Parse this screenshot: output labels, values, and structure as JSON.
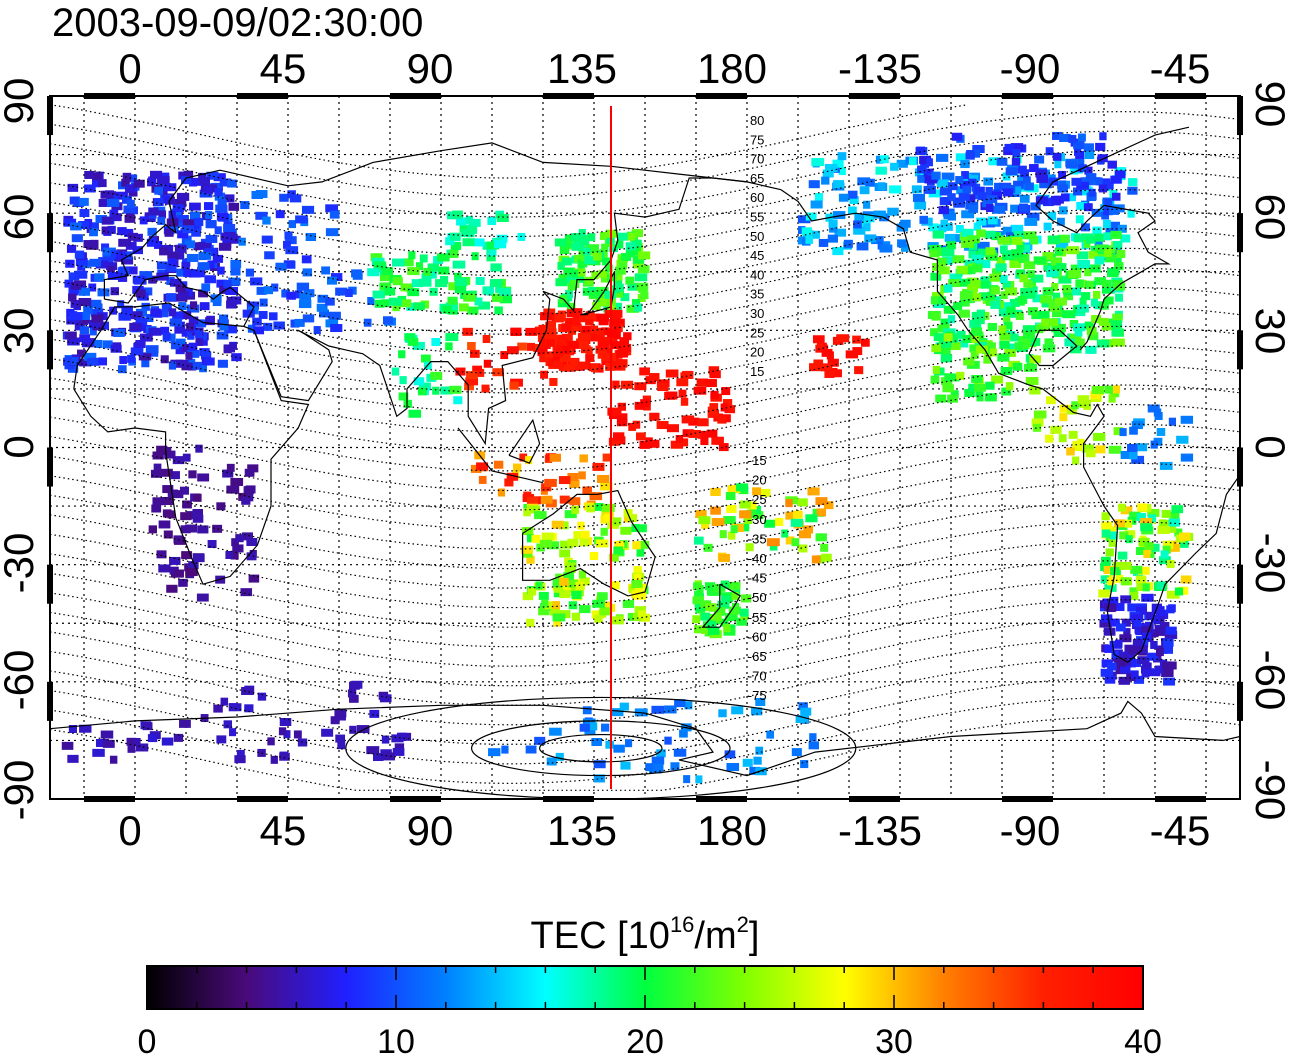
{
  "header": {
    "timestamp": "2003-09-09/02:30:00"
  },
  "map": {
    "lon_ticks_top": [
      "0",
      "45",
      "90",
      "135",
      "180",
      "-135",
      "-90",
      "-45"
    ],
    "lon_ticks_bottom": [
      "0",
      "45",
      "90",
      "135",
      "180",
      "-135",
      "-90",
      "-45"
    ],
    "lat_ticks_left": [
      "90",
      "60",
      "30",
      "0",
      "-30",
      "-60",
      "-90"
    ],
    "lat_ticks_right": [
      "90",
      "60",
      "30",
      "0",
      "-30",
      "-60",
      "-90"
    ],
    "lon_range": [
      -25,
      325
    ],
    "lat_range": [
      -90,
      90
    ],
    "grid_spacing_deg": 15,
    "meridian_line": {
      "lon": 140,
      "color": "#ff0000"
    },
    "maglat_labels_north": [
      "80",
      "75",
      "70",
      "65",
      "60",
      "55",
      "50",
      "45",
      "40",
      "35",
      "30",
      "25",
      "20",
      "15"
    ],
    "maglat_labels_south": [
      "-15",
      "-20",
      "-25",
      "-30",
      "-35",
      "-40",
      "-45",
      "-50",
      "-55",
      "-60",
      "-65",
      "-70",
      "-75"
    ]
  },
  "colorbar": {
    "title_main": "TEC  [10",
    "title_exp1": "16",
    "title_mid": "/m",
    "title_exp2": "2",
    "title_end": "]",
    "tick_labels": [
      "0",
      "10",
      "20",
      "30",
      "40"
    ],
    "min": 0,
    "max": 40,
    "colors": [
      "#000000",
      "#4a0a7a",
      "#2020ff",
      "#0080ff",
      "#00ffff",
      "#00ff40",
      "#80ff00",
      "#ffff00",
      "#ff8000",
      "#ff2000",
      "#ff0000"
    ]
  },
  "tec_regions": [
    {
      "lon": [
        -20,
        30
      ],
      "lat": [
        20,
        70
      ],
      "tec": [
        5,
        11
      ],
      "n": 420
    },
    {
      "lon": [
        30,
        60
      ],
      "lat": [
        30,
        65
      ],
      "tec": [
        8,
        12
      ],
      "n": 60
    },
    {
      "lon": [
        45,
        75
      ],
      "lat": [
        30,
        45
      ],
      "tec": [
        9,
        12
      ],
      "n": 15
    },
    {
      "lon": [
        70,
        110
      ],
      "lat": [
        35,
        50
      ],
      "tec": [
        17,
        23
      ],
      "n": 80
    },
    {
      "lon": [
        90,
        115
      ],
      "lat": [
        50,
        60
      ],
      "tec": [
        16,
        20
      ],
      "n": 25
    },
    {
      "lon": [
        75,
        95
      ],
      "lat": [
        8,
        30
      ],
      "tec": [
        16,
        22
      ],
      "n": 25
    },
    {
      "lon": [
        95,
        125
      ],
      "lat": [
        15,
        30
      ],
      "tec": [
        34,
        40
      ],
      "n": 30
    },
    {
      "lon": [
        125,
        150
      ],
      "lat": [
        35,
        55
      ],
      "tec": [
        18,
        24
      ],
      "n": 120
    },
    {
      "lon": [
        120,
        145
      ],
      "lat": [
        20,
        35
      ],
      "tec": [
        36,
        40
      ],
      "n": 120
    },
    {
      "lon": [
        140,
        175
      ],
      "lat": [
        0,
        20
      ],
      "tec": [
        37,
        40
      ],
      "n": 70
    },
    {
      "lon": [
        200,
        215
      ],
      "lat": [
        18,
        28
      ],
      "tec": [
        37,
        40
      ],
      "n": 20
    },
    {
      "lon": [
        100,
        140
      ],
      "lat": [
        -15,
        -2
      ],
      "tec": [
        28,
        38
      ],
      "n": 40
    },
    {
      "lon": [
        115,
        150
      ],
      "lat": [
        -45,
        -15
      ],
      "tec": [
        20,
        30
      ],
      "n": 130
    },
    {
      "lon": [
        165,
        180
      ],
      "lat": [
        -48,
        -35
      ],
      "tec": [
        19,
        24
      ],
      "n": 55
    },
    {
      "lon": [
        165,
        205
      ],
      "lat": [
        -30,
        -10
      ],
      "tec": [
        18,
        32
      ],
      "n": 60
    },
    {
      "lon": [
        195,
        295
      ],
      "lat": [
        50,
        75
      ],
      "tec": [
        10,
        17
      ],
      "n": 200
    },
    {
      "lon": [
        230,
        290
      ],
      "lat": [
        60,
        80
      ],
      "tec": [
        7,
        11
      ],
      "n": 120
    },
    {
      "lon": [
        235,
        290
      ],
      "lat": [
        25,
        55
      ],
      "tec": [
        17,
        24
      ],
      "n": 300
    },
    {
      "lon": [
        235,
        265
      ],
      "lat": [
        12,
        30
      ],
      "tec": [
        19,
        25
      ],
      "n": 60
    },
    {
      "lon": [
        265,
        290
      ],
      "lat": [
        -5,
        15
      ],
      "tec": [
        22,
        30
      ],
      "n": 35
    },
    {
      "lon": [
        290,
        310
      ],
      "lat": [
        -5,
        10
      ],
      "tec": [
        10,
        14
      ],
      "n": 20
    },
    {
      "lon": [
        285,
        310
      ],
      "lat": [
        -38,
        -15
      ],
      "tec": [
        17,
        30
      ],
      "n": 90
    },
    {
      "lon": [
        285,
        305
      ],
      "lat": [
        -60,
        -38
      ],
      "tec": [
        5,
        9
      ],
      "n": 110
    },
    {
      "lon": [
        5,
        35
      ],
      "lat": [
        -40,
        0
      ],
      "tec": [
        4,
        6
      ],
      "n": 80
    },
    {
      "lon": [
        20,
        80
      ],
      "lat": [
        -80,
        -60
      ],
      "tec": [
        5,
        7
      ],
      "n": 50
    },
    {
      "lon": [
        -20,
        20
      ],
      "lat": [
        -80,
        -70
      ],
      "tec": [
        5,
        7
      ],
      "n": 20
    },
    {
      "lon": [
        105,
        200
      ],
      "lat": [
        -85,
        -65
      ],
      "tec": [
        10,
        14
      ],
      "n": 60
    }
  ],
  "coast_polylines": [
    [
      [
        -18,
        15
      ],
      [
        -17,
        21
      ],
      [
        -10,
        30
      ],
      [
        -6,
        36
      ],
      [
        0,
        36
      ],
      [
        10,
        37
      ],
      [
        20,
        32
      ],
      [
        32,
        31
      ],
      [
        35,
        30
      ],
      [
        43,
        12
      ],
      [
        51,
        11
      ],
      [
        48,
        5
      ],
      [
        40,
        -3
      ],
      [
        40,
        -15
      ],
      [
        36,
        -25
      ],
      [
        28,
        -33
      ],
      [
        20,
        -35
      ],
      [
        17,
        -29
      ],
      [
        12,
        -18
      ],
      [
        9,
        -1
      ],
      [
        9,
        4
      ],
      [
        0,
        5
      ],
      [
        -8,
        4
      ],
      [
        -13,
        8
      ],
      [
        -18,
        15
      ]
    ],
    [
      [
        -9,
        38
      ],
      [
        -9,
        43
      ],
      [
        -2,
        44
      ],
      [
        -4,
        48
      ],
      [
        2,
        51
      ],
      [
        5,
        54
      ],
      [
        9,
        57
      ],
      [
        12,
        55
      ],
      [
        10,
        63
      ],
      [
        15,
        69
      ],
      [
        25,
        71
      ],
      [
        30,
        70
      ],
      [
        40,
        68
      ],
      [
        45,
        67
      ],
      [
        55,
        68
      ],
      [
        70,
        73
      ],
      [
        90,
        76
      ],
      [
        105,
        78
      ],
      [
        120,
        73
      ],
      [
        140,
        72
      ],
      [
        160,
        70
      ],
      [
        180,
        68
      ],
      [
        190,
        66
      ]
    ],
    [
      [
        32,
        31
      ],
      [
        35,
        36
      ],
      [
        28,
        41
      ],
      [
        26,
        40
      ],
      [
        23,
        38
      ],
      [
        20,
        40
      ],
      [
        15,
        41
      ],
      [
        12,
        44
      ],
      [
        9,
        44
      ],
      [
        3,
        43
      ],
      [
        -2,
        37
      ],
      [
        -9,
        38
      ]
    ],
    [
      [
        35,
        30
      ],
      [
        43,
        13
      ],
      [
        51,
        12
      ],
      [
        58,
        22
      ],
      [
        57,
        25
      ],
      [
        50,
        29
      ],
      [
        48,
        30
      ],
      [
        57,
        26
      ],
      [
        62,
        25
      ],
      [
        67,
        24
      ],
      [
        72,
        21
      ],
      [
        77,
        8
      ],
      [
        80,
        10
      ],
      [
        80,
        15
      ],
      [
        87,
        22
      ],
      [
        92,
        22
      ],
      [
        98,
        16
      ],
      [
        98,
        8
      ],
      [
        103,
        1
      ],
      [
        104,
        10
      ],
      [
        109,
        12
      ],
      [
        108,
        21
      ],
      [
        117,
        23
      ],
      [
        121,
        30
      ],
      [
        122,
        38
      ],
      [
        120,
        40
      ],
      [
        126,
        38
      ],
      [
        129,
        35
      ],
      [
        130,
        43
      ],
      [
        135,
        43
      ],
      [
        140,
        48
      ],
      [
        142,
        53
      ],
      [
        141,
        60
      ],
      [
        150,
        59
      ],
      [
        160,
        61
      ],
      [
        163,
        69
      ],
      [
        170,
        69
      ],
      [
        180,
        68
      ]
    ],
    [
      [
        95,
        5
      ],
      [
        105,
        -6
      ],
      [
        115,
        -8
      ],
      [
        120,
        -9
      ]
    ],
    [
      [
        110,
        -2
      ],
      [
        117,
        7
      ],
      [
        119,
        1
      ],
      [
        116,
        -4
      ],
      [
        110,
        -2
      ]
    ],
    [
      [
        131,
        34
      ],
      [
        136,
        35
      ],
      [
        140,
        36
      ],
      [
        141,
        41
      ],
      [
        141,
        45
      ],
      [
        138,
        40
      ],
      [
        133,
        34
      ],
      [
        131,
        34
      ]
    ],
    [
      [
        114,
        -22
      ],
      [
        114,
        -34
      ],
      [
        122,
        -34
      ],
      [
        131,
        -31
      ],
      [
        138,
        -35
      ],
      [
        145,
        -38
      ],
      [
        150,
        -37
      ],
      [
        153,
        -28
      ],
      [
        146,
        -19
      ],
      [
        142,
        -11
      ],
      [
        136,
        -12
      ],
      [
        130,
        -12
      ],
      [
        123,
        -17
      ],
      [
        114,
        -22
      ]
    ],
    [
      [
        172,
        -35
      ],
      [
        178,
        -38
      ],
      [
        176,
        -41
      ],
      [
        172,
        -46
      ],
      [
        167,
        -46
      ],
      [
        172,
        -41
      ],
      [
        172,
        -35
      ]
    ],
    [
      [
        190,
        66
      ],
      [
        195,
        63
      ],
      [
        199,
        58
      ],
      [
        205,
        59
      ],
      [
        212,
        60
      ],
      [
        220,
        59
      ],
      [
        226,
        56
      ],
      [
        228,
        50
      ],
      [
        236,
        48
      ],
      [
        236,
        40
      ],
      [
        242,
        34
      ],
      [
        245,
        30
      ],
      [
        250,
        25
      ],
      [
        254,
        19
      ],
      [
        263,
        16
      ],
      [
        267,
        15
      ],
      [
        276,
        9
      ],
      [
        281,
        8
      ],
      [
        283,
        11
      ],
      [
        285,
        8
      ],
      [
        279,
        1
      ],
      [
        279,
        -5
      ],
      [
        285,
        -15
      ],
      [
        289,
        -20
      ],
      [
        288,
        -33
      ],
      [
        286,
        -42
      ],
      [
        288,
        -53
      ],
      [
        292,
        -55
      ],
      [
        296,
        -52
      ],
      [
        301,
        -40
      ],
      [
        303,
        -35
      ],
      [
        312,
        -27
      ],
      [
        318,
        -22
      ],
      [
        321,
        -12
      ],
      [
        325,
        -7
      ]
    ],
    [
      [
        278,
        25
      ],
      [
        280,
        27
      ],
      [
        282,
        31
      ],
      [
        284,
        35
      ],
      [
        285,
        38
      ],
      [
        290,
        42
      ],
      [
        294,
        44
      ],
      [
        300,
        47
      ],
      [
        304,
        47
      ],
      [
        298,
        50
      ],
      [
        295,
        55
      ],
      [
        300,
        58
      ],
      [
        298,
        60
      ],
      [
        285,
        62
      ],
      [
        280,
        58
      ],
      [
        277,
        55
      ],
      [
        270,
        58
      ],
      [
        265,
        62
      ],
      [
        270,
        68
      ],
      [
        275,
        70
      ],
      [
        280,
        72
      ],
      [
        290,
        76
      ],
      [
        300,
        80
      ],
      [
        310,
        82
      ]
    ],
    [
      [
        266,
        30
      ],
      [
        272,
        30
      ],
      [
        277,
        26
      ],
      [
        270,
        21
      ],
      [
        266,
        21
      ],
      [
        263,
        24
      ],
      [
        266,
        30
      ]
    ],
    [
      [
        -25,
        -72
      ],
      [
        0,
        -70
      ],
      [
        30,
        -69
      ],
      [
        60,
        -67
      ],
      [
        90,
        -66
      ],
      [
        120,
        -66
      ],
      [
        150,
        -68
      ],
      [
        165,
        -72
      ],
      [
        170,
        -78
      ],
      [
        160,
        -80
      ],
      [
        180,
        -84
      ],
      [
        200,
        -78
      ],
      [
        220,
        -76
      ],
      [
        240,
        -74
      ],
      [
        260,
        -73
      ],
      [
        280,
        -72
      ],
      [
        290,
        -68
      ],
      [
        292,
        -65
      ],
      [
        296,
        -68
      ],
      [
        300,
        -74
      ],
      [
        320,
        -75
      ],
      [
        325,
        -74
      ]
    ]
  ],
  "mag_rings_south": [
    {
      "lon": 137,
      "lat": -77,
      "rx": 18,
      "ry": 3.5
    },
    {
      "lon": 137,
      "lat": -77,
      "rx": 38,
      "ry": 7
    },
    {
      "lon": 137,
      "lat": -77,
      "rx": 75,
      "ry": 13
    }
  ]
}
